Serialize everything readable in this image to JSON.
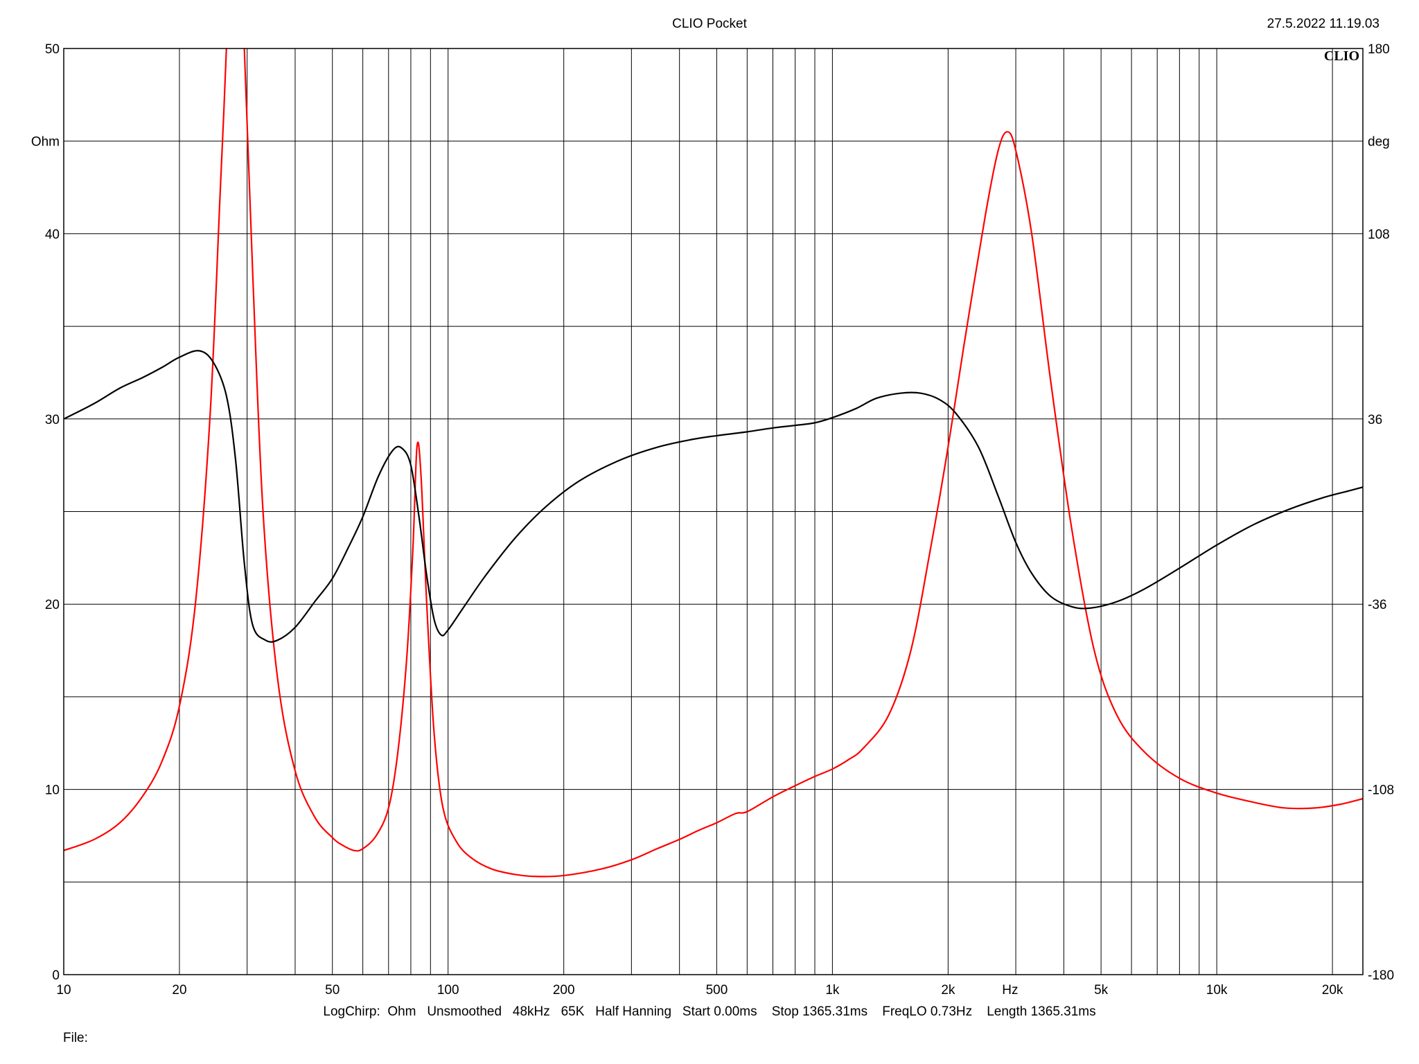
{
  "header": {
    "title": "CLIO Pocket",
    "timestamp": "27.5.2022 11.19.03"
  },
  "brand": {
    "logo_text": "CLIO"
  },
  "footer": {
    "status_line": "LogChirp:  Ohm   Unsmoothed   48kHz   65K   Half Hanning   Start 0.00ms    Stop 1365.31ms    FreqLO 0.73Hz    Length 1365.31ms",
    "file_label": "File:"
  },
  "chart_data": {
    "type": "line",
    "x_scale": "log",
    "xlim": [
      10,
      24000
    ],
    "x_unit_label": "Hz",
    "x_ticks": [
      {
        "value": 10,
        "label": "10"
      },
      {
        "value": 20,
        "label": "20"
      },
      {
        "value": 50,
        "label": "50"
      },
      {
        "value": 100,
        "label": "100"
      },
      {
        "value": 200,
        "label": "200"
      },
      {
        "value": 500,
        "label": "500"
      },
      {
        "value": 1000,
        "label": "1k"
      },
      {
        "value": 2000,
        "label": "2k"
      },
      {
        "value": 5000,
        "label": "5k"
      },
      {
        "value": 10000,
        "label": "10k"
      },
      {
        "value": 20000,
        "label": "20k"
      }
    ],
    "left_axis": {
      "unit_label": "Ohm",
      "ylim": [
        0,
        50
      ],
      "ticks": [
        {
          "value": 0,
          "label": "0"
        },
        {
          "value": 10,
          "label": "10"
        },
        {
          "value": 20,
          "label": "20"
        },
        {
          "value": 30,
          "label": "30"
        },
        {
          "value": 40,
          "label": "40"
        },
        {
          "value": 50,
          "label": "50"
        }
      ]
    },
    "right_axis": {
      "unit_label": "deg",
      "ylim": [
        -180,
        180
      ],
      "ticks": [
        {
          "value": -180,
          "label": "-180"
        },
        {
          "value": -108,
          "label": "-108"
        },
        {
          "value": -36,
          "label": "-36"
        },
        {
          "value": 36,
          "label": "36"
        },
        {
          "value": 108,
          "label": "108"
        },
        {
          "value": 180,
          "label": "180"
        }
      ]
    },
    "grid": true,
    "series": [
      {
        "axis": "left",
        "color": "#ff0000",
        "points": [
          [
            10,
            6.7
          ],
          [
            12,
            7.3
          ],
          [
            14,
            8.2
          ],
          [
            16,
            9.6
          ],
          [
            18,
            11.5
          ],
          [
            20,
            14.5
          ],
          [
            22,
            20
          ],
          [
            24,
            30
          ],
          [
            25.5,
            42
          ],
          [
            26.5,
            50
          ],
          [
            27.5,
            60
          ],
          [
            28.5,
            60
          ],
          [
            29.5,
            50
          ],
          [
            31,
            38
          ],
          [
            33,
            25
          ],
          [
            36,
            16
          ],
          [
            40,
            11
          ],
          [
            45,
            8.5
          ],
          [
            50,
            7.4
          ],
          [
            53,
            7.0
          ],
          [
            57,
            6.7
          ],
          [
            60,
            6.8
          ],
          [
            65,
            7.5
          ],
          [
            70,
            9
          ],
          [
            74,
            12
          ],
          [
            78,
            17
          ],
          [
            81,
            23
          ],
          [
            83,
            28.5
          ],
          [
            85,
            27
          ],
          [
            88,
            20
          ],
          [
            92,
            13
          ],
          [
            97,
            9
          ],
          [
            105,
            7.2
          ],
          [
            115,
            6.3
          ],
          [
            130,
            5.7
          ],
          [
            150,
            5.4
          ],
          [
            170,
            5.3
          ],
          [
            200,
            5.35
          ],
          [
            250,
            5.7
          ],
          [
            300,
            6.2
          ],
          [
            350,
            6.8
          ],
          [
            400,
            7.3
          ],
          [
            450,
            7.8
          ],
          [
            500,
            8.2
          ],
          [
            560,
            8.7
          ],
          [
            600,
            8.8
          ],
          [
            700,
            9.6
          ],
          [
            800,
            10.2
          ],
          [
            900,
            10.7
          ],
          [
            1000,
            11.1
          ],
          [
            1100,
            11.6
          ],
          [
            1200,
            12.2
          ],
          [
            1400,
            14
          ],
          [
            1600,
            17.5
          ],
          [
            1800,
            23
          ],
          [
            2000,
            28.5
          ],
          [
            2200,
            34
          ],
          [
            2500,
            41
          ],
          [
            2700,
            44.5
          ],
          [
            2850,
            45.5
          ],
          [
            3000,
            44.5
          ],
          [
            3300,
            40
          ],
          [
            3700,
            32
          ],
          [
            4200,
            24
          ],
          [
            4800,
            17.5
          ],
          [
            5500,
            14
          ],
          [
            6500,
            12
          ],
          [
            8000,
            10.6
          ],
          [
            10000,
            9.8
          ],
          [
            12500,
            9.3
          ],
          [
            15000,
            9.0
          ],
          [
            18000,
            9.0
          ],
          [
            21000,
            9.2
          ],
          [
            24000,
            9.5
          ]
        ]
      },
      {
        "axis": "right",
        "color": "#000000",
        "points": [
          [
            10,
            36
          ],
          [
            12,
            42
          ],
          [
            14,
            48
          ],
          [
            16,
            52
          ],
          [
            18,
            56
          ],
          [
            20,
            60
          ],
          [
            22.5,
            62.5
          ],
          [
            24.5,
            58
          ],
          [
            26.5,
            45
          ],
          [
            28,
            20
          ],
          [
            29.5,
            -20
          ],
          [
            31,
            -44
          ],
          [
            33.5,
            -50
          ],
          [
            36,
            -50
          ],
          [
            40,
            -45
          ],
          [
            45,
            -35
          ],
          [
            50,
            -26
          ],
          [
            55,
            -14
          ],
          [
            60,
            -2
          ],
          [
            66,
            14
          ],
          [
            72,
            24
          ],
          [
            76,
            24.5
          ],
          [
            80,
            18
          ],
          [
            84,
            -2
          ],
          [
            88,
            -25
          ],
          [
            92,
            -42
          ],
          [
            96,
            -48
          ],
          [
            100,
            -46
          ],
          [
            110,
            -37
          ],
          [
            125,
            -25
          ],
          [
            150,
            -10
          ],
          [
            180,
            2
          ],
          [
            220,
            12
          ],
          [
            280,
            20
          ],
          [
            350,
            25
          ],
          [
            430,
            28
          ],
          [
            500,
            29.5
          ],
          [
            600,
            31
          ],
          [
            700,
            32.5
          ],
          [
            800,
            33.5
          ],
          [
            900,
            34.5
          ],
          [
            1000,
            36.5
          ],
          [
            1150,
            40
          ],
          [
            1300,
            44
          ],
          [
            1500,
            46
          ],
          [
            1700,
            46
          ],
          [
            1900,
            43.5
          ],
          [
            2100,
            38
          ],
          [
            2400,
            25
          ],
          [
            2700,
            6
          ],
          [
            3000,
            -12
          ],
          [
            3300,
            -24
          ],
          [
            3700,
            -33
          ],
          [
            4200,
            -37
          ],
          [
            4700,
            -37.5
          ],
          [
            5500,
            -35
          ],
          [
            6500,
            -30
          ],
          [
            8000,
            -22
          ],
          [
            10000,
            -13
          ],
          [
            12500,
            -5
          ],
          [
            15500,
            1
          ],
          [
            19000,
            5.5
          ],
          [
            22000,
            8
          ],
          [
            24000,
            9.5
          ]
        ]
      }
    ]
  }
}
